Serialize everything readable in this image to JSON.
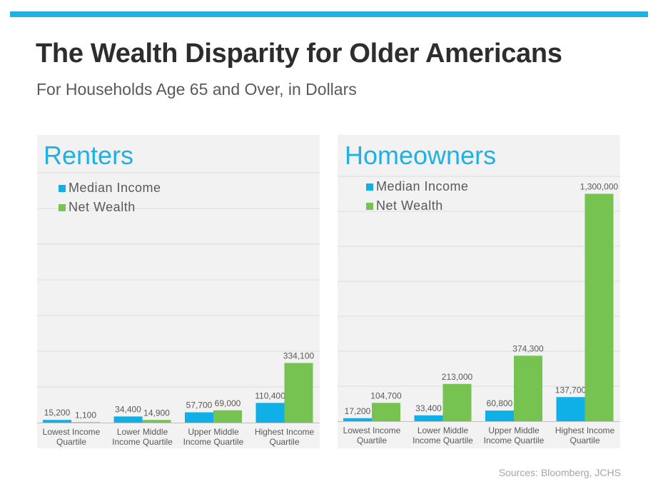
{
  "header": {
    "title": "The Wealth Disparity for Older Americans",
    "subtitle": "For Households Age 65 and Over, in Dollars"
  },
  "colors": {
    "accent": "#1fb1e6",
    "median_income": "#0fb0e8",
    "net_wealth": "#76c351"
  },
  "footer": {
    "sources": "Sources: Bloomberg, JCHS"
  },
  "chart_data": [
    {
      "type": "bar",
      "title": "Renters",
      "categories": [
        [
          "Lowest Income",
          "Quartile"
        ],
        [
          "Lower Middle",
          "Income Quartile"
        ],
        [
          "Upper Middle",
          "Income Quartile"
        ],
        [
          "Highest Income",
          "Quartile"
        ]
      ],
      "series": [
        {
          "name": "Median Income",
          "values": [
            15200,
            34400,
            57700,
            110400
          ],
          "labels": [
            "15,200",
            "34,400",
            "57,700",
            "110,400"
          ]
        },
        {
          "name": "Net Wealth",
          "values": [
            1100,
            14900,
            69000,
            334100
          ],
          "labels": [
            "1,100",
            "14,900",
            "69,000",
            "334,100"
          ]
        }
      ],
      "ylim": [
        0,
        1400000
      ],
      "grid": true,
      "legend_position": "top-left"
    },
    {
      "type": "bar",
      "title": "Homeowners",
      "categories": [
        [
          "Lowest Income",
          "Quartile"
        ],
        [
          "Lower Middle",
          "Income Quartile"
        ],
        [
          "Upper Middle",
          "Income Quartile"
        ],
        [
          "Highest Income",
          "Quartile"
        ]
      ],
      "series": [
        {
          "name": "Median Income",
          "values": [
            17200,
            33400,
            60800,
            137700
          ],
          "labels": [
            "17,200",
            "33,400",
            "60,800",
            "137,700"
          ]
        },
        {
          "name": "Net Wealth",
          "values": [
            104700,
            213000,
            374300,
            1300000
          ],
          "labels": [
            "104,700",
            "213,000",
            "374,300",
            "1,300,000"
          ]
        }
      ],
      "ylim": [
        0,
        1400000
      ],
      "grid": true,
      "legend_position": "top-left"
    }
  ]
}
